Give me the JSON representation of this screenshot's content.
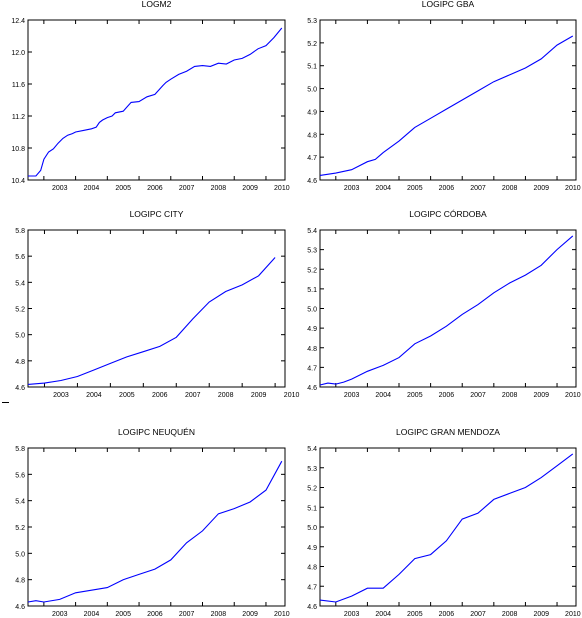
{
  "line_color": "#0000ff",
  "chart_data": [
    {
      "type": "line",
      "title": "LOGM2",
      "xlabel": "",
      "ylabel": "",
      "x_tick_labels": [
        "2003",
        "2004",
        "2005",
        "2006",
        "2007",
        "2008",
        "2009",
        "2010"
      ],
      "x_range": [
        2002.5,
        2010.6
      ],
      "ylim": [
        10.4,
        12.4
      ],
      "y_tick_labels": [
        "10.4",
        "10.8",
        "11.2",
        "11.6",
        "12.0",
        "12.4"
      ],
      "grid": false,
      "series": [
        {
          "x": [
            2002.5,
            2002.75,
            2002.9,
            2003.0,
            2003.15,
            2003.3,
            2003.45,
            2003.6,
            2003.75,
            2003.9,
            2004.0,
            2004.25,
            2004.5,
            2004.65,
            2004.75,
            2004.85,
            2005.0,
            2005.15,
            2005.25,
            2005.5,
            2005.75,
            2006.0,
            2006.25,
            2006.5,
            2006.75,
            2006.85,
            2007.0,
            2007.25,
            2007.5,
            2007.75,
            2008.0,
            2008.25,
            2008.5,
            2008.75,
            2009.0,
            2009.25,
            2009.5,
            2009.75,
            2010.0,
            2010.25,
            2010.5
          ],
          "y": [
            10.45,
            10.45,
            10.52,
            10.66,
            10.75,
            10.79,
            10.86,
            10.92,
            10.96,
            10.98,
            11.0,
            11.02,
            11.04,
            11.06,
            11.12,
            11.15,
            11.18,
            11.2,
            11.24,
            11.26,
            11.37,
            11.38,
            11.44,
            11.47,
            11.58,
            11.62,
            11.66,
            11.72,
            11.76,
            11.82,
            11.83,
            11.82,
            11.86,
            11.85,
            11.9,
            11.92,
            11.97,
            12.04,
            12.08,
            12.18,
            12.3
          ]
        }
      ]
    },
    {
      "type": "line",
      "title": "LOGIPC GBA",
      "xlabel": "",
      "ylabel": "",
      "x_tick_labels": [
        "2003",
        "2004",
        "2005",
        "2006",
        "2007",
        "2008",
        "2009",
        "2010"
      ],
      "x_range": [
        2002.5,
        2010.6
      ],
      "ylim": [
        4.6,
        5.3
      ],
      "y_tick_labels": [
        "4.6",
        "4.7",
        "4.8",
        "4.9",
        "5.0",
        "5.1",
        "5.2",
        "5.3"
      ],
      "grid": false,
      "series": [
        {
          "x": [
            2002.5,
            2003.0,
            2003.5,
            2004.0,
            2004.25,
            2004.5,
            2005.0,
            2005.5,
            2006.0,
            2006.5,
            2007.0,
            2007.5,
            2008.0,
            2008.5,
            2009.0,
            2009.5,
            2010.0,
            2010.5
          ],
          "y": [
            4.62,
            4.63,
            4.645,
            4.68,
            4.69,
            4.72,
            4.77,
            4.83,
            4.87,
            4.91,
            4.95,
            4.99,
            5.03,
            5.06,
            5.09,
            5.13,
            5.19,
            5.23
          ]
        }
      ]
    },
    {
      "type": "line",
      "title": "LOGIPC CITY",
      "xlabel": "",
      "ylabel": "",
      "x_tick_labels": [
        "2003",
        "2004",
        "2005",
        "2006",
        "2007",
        "2008",
        "2009",
        "2010"
      ],
      "x_range": [
        2002.5,
        2010.3
      ],
      "ylim": [
        4.6,
        5.8
      ],
      "y_tick_labels": [
        "4.6",
        "4.8",
        "5.0",
        "5.2",
        "5.4",
        "5.6",
        "5.8"
      ],
      "grid": false,
      "series": [
        {
          "x": [
            2002.5,
            2003.0,
            2003.5,
            2004.0,
            2004.5,
            2005.0,
            2005.5,
            2006.0,
            2006.5,
            2007.0,
            2007.5,
            2008.0,
            2008.5,
            2009.0,
            2009.5,
            2010.0
          ],
          "y": [
            4.62,
            4.63,
            4.65,
            4.68,
            4.73,
            4.78,
            4.83,
            4.87,
            4.91,
            4.98,
            5.12,
            5.25,
            5.33,
            5.38,
            5.45,
            5.59
          ]
        }
      ]
    },
    {
      "type": "line",
      "title": "LOGIPC CÓRDOBA",
      "xlabel": "",
      "ylabel": "",
      "x_tick_labels": [
        "2003",
        "2004",
        "2005",
        "2006",
        "2007",
        "2008",
        "2009",
        "2010"
      ],
      "x_range": [
        2002.5,
        2010.6
      ],
      "ylim": [
        4.6,
        5.4
      ],
      "y_tick_labels": [
        "4.6",
        "4.7",
        "4.8",
        "4.9",
        "5.0",
        "5.1",
        "5.2",
        "5.3",
        "5.4"
      ],
      "grid": false,
      "series": [
        {
          "x": [
            2002.5,
            2002.75,
            2003.0,
            2003.25,
            2003.5,
            2004.0,
            2004.5,
            2005.0,
            2005.5,
            2006.0,
            2006.5,
            2007.0,
            2007.5,
            2008.0,
            2008.5,
            2009.0,
            2009.5,
            2010.0,
            2010.5
          ],
          "y": [
            4.61,
            4.62,
            4.615,
            4.625,
            4.64,
            4.68,
            4.71,
            4.75,
            4.82,
            4.86,
            4.91,
            4.97,
            5.02,
            5.08,
            5.13,
            5.17,
            5.22,
            5.3,
            5.37
          ]
        }
      ]
    },
    {
      "type": "line",
      "title": "LOGIPC NEUQUÉN",
      "xlabel": "",
      "ylabel": "",
      "x_tick_labels": [
        "2003",
        "2004",
        "2005",
        "2006",
        "2007",
        "2008",
        "2009",
        "2010"
      ],
      "x_range": [
        2002.5,
        2010.6
      ],
      "ylim": [
        4.6,
        5.8
      ],
      "y_tick_labels": [
        "4.6",
        "4.8",
        "5.0",
        "5.2",
        "5.4",
        "5.6",
        "5.8"
      ],
      "grid": false,
      "series": [
        {
          "x": [
            2002.5,
            2002.75,
            2003.0,
            2003.5,
            2004.0,
            2004.5,
            2005.0,
            2005.5,
            2006.0,
            2006.5,
            2007.0,
            2007.5,
            2008.0,
            2008.5,
            2009.0,
            2009.5,
            2010.0,
            2010.5
          ],
          "y": [
            4.63,
            4.64,
            4.63,
            4.65,
            4.7,
            4.72,
            4.74,
            4.8,
            4.84,
            4.88,
            4.95,
            5.08,
            5.17,
            5.3,
            5.34,
            5.39,
            5.48,
            5.7
          ]
        }
      ]
    },
    {
      "type": "line",
      "title": "LOGIPC GRAN MENDOZA",
      "xlabel": "",
      "ylabel": "",
      "x_tick_labels": [
        "2003",
        "2004",
        "2005",
        "2006",
        "2007",
        "2008",
        "2009",
        "2010"
      ],
      "x_range": [
        2002.5,
        2010.6
      ],
      "ylim": [
        4.6,
        5.4
      ],
      "y_tick_labels": [
        "4.6",
        "4.7",
        "4.8",
        "4.9",
        "5.0",
        "5.1",
        "5.2",
        "5.3",
        "5.4"
      ],
      "grid": false,
      "series": [
        {
          "x": [
            2002.5,
            2003.0,
            2003.5,
            2004.0,
            2004.5,
            2005.0,
            2005.5,
            2006.0,
            2006.5,
            2007.0,
            2007.5,
            2008.0,
            2008.5,
            2009.0,
            2009.5,
            2010.0,
            2010.5
          ],
          "y": [
            4.63,
            4.62,
            4.65,
            4.69,
            4.69,
            4.76,
            4.84,
            4.86,
            4.93,
            5.04,
            5.07,
            5.14,
            5.17,
            5.2,
            5.25,
            5.31,
            5.37
          ]
        }
      ]
    }
  ]
}
